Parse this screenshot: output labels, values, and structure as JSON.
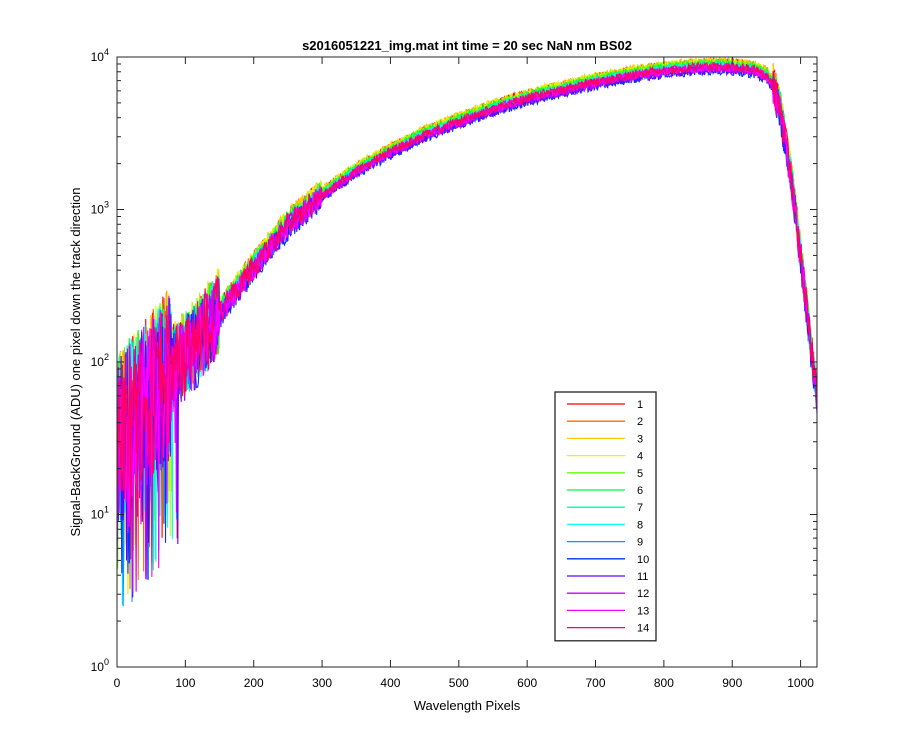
{
  "chart_data": {
    "type": "line",
    "title": "s2016051221_img.mat int time = 20 sec  NaN nm BS02",
    "xlabel": "Wavelength Pixels",
    "ylabel": "Signal-BackGround (ADU) one pixel down the track direction",
    "x_scale": "linear",
    "y_scale": "log",
    "xlim": [
      0,
      1024
    ],
    "ylim": [
      1,
      10000
    ],
    "x_ticks": [
      0,
      100,
      200,
      300,
      400,
      500,
      600,
      700,
      800,
      900,
      1000
    ],
    "x_tick_labels": [
      "0",
      "100",
      "200",
      "300",
      "400",
      "500",
      "600",
      "700",
      "800",
      "900",
      "1000"
    ],
    "y_ticks": [
      1,
      10,
      100,
      1000,
      10000
    ],
    "y_tick_labels": [
      {
        "base": "10",
        "exp": "0"
      },
      {
        "base": "10",
        "exp": "1"
      },
      {
        "base": "10",
        "exp": "2"
      },
      {
        "base": "10",
        "exp": "3"
      },
      {
        "base": "10",
        "exp": "4"
      }
    ],
    "grid": false,
    "legend_position": "lower-right",
    "profile": {
      "x": [
        0,
        10,
        20,
        40,
        60,
        80,
        100,
        120,
        150,
        200,
        250,
        300,
        350,
        400,
        450,
        500,
        550,
        600,
        650,
        700,
        750,
        800,
        850,
        880,
        900,
        930,
        950,
        960,
        970,
        980,
        990,
        1000,
        1010,
        1020,
        1024
      ],
      "y": [
        30,
        35,
        40,
        50,
        65,
        85,
        110,
        140,
        210,
        420,
        800,
        1250,
        1800,
        2400,
        3100,
        3800,
        4600,
        5400,
        6100,
        6900,
        7600,
        8200,
        8600,
        8700,
        8600,
        8300,
        7600,
        6500,
        4500,
        2500,
        1200,
        500,
        200,
        80,
        60
      ]
    },
    "series": [
      {
        "name": "1",
        "color": "#ff0000",
        "scale": 1.06
      },
      {
        "name": "2",
        "color": "#ff6a00",
        "scale": 1.07
      },
      {
        "name": "3",
        "color": "#ffcc00",
        "scale": 1.08
      },
      {
        "name": "4",
        "color": "#ccff00",
        "scale": 1.07
      },
      {
        "name": "5",
        "color": "#66ff00",
        "scale": 1.05
      },
      {
        "name": "6",
        "color": "#00ff33",
        "scale": 1.04
      },
      {
        "name": "7",
        "color": "#00ff99",
        "scale": 1.02
      },
      {
        "name": "8",
        "color": "#00ffff",
        "scale": 1.0
      },
      {
        "name": "9",
        "color": "#0099ff",
        "scale": 0.97
      },
      {
        "name": "10",
        "color": "#0033ff",
        "scale": 0.94
      },
      {
        "name": "11",
        "color": "#6600ff",
        "scale": 0.95
      },
      {
        "name": "12",
        "color": "#cc00ff",
        "scale": 0.97
      },
      {
        "name": "13",
        "color": "#ff00ff",
        "scale": 0.99
      },
      {
        "name": "14",
        "color": "#ff0066",
        "scale": 1.0
      }
    ]
  }
}
